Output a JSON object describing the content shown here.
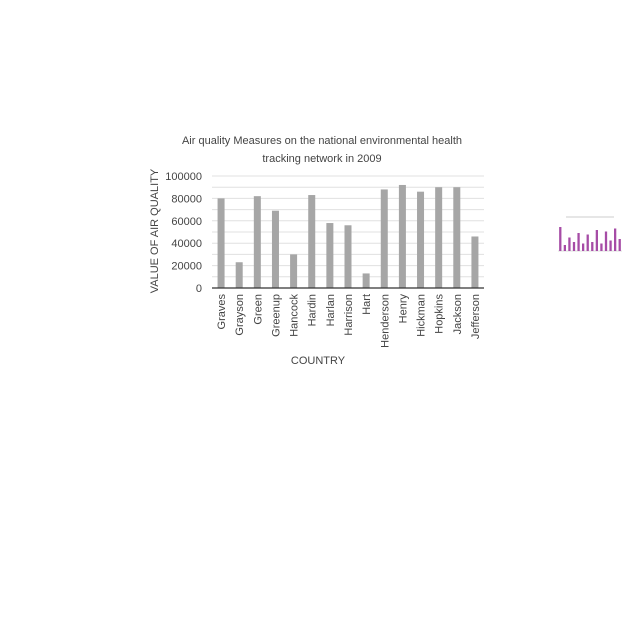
{
  "chart_data": {
    "type": "bar",
    "title_lines": [
      "Air quality Measures on the national environmental health",
      "tracking network in 2009"
    ],
    "xlabel": "COUNTRY",
    "ylabel": "VALUE OF  AIR QUALITY",
    "ylim": [
      0,
      100000
    ],
    "yticks": [
      "0",
      "20000",
      "40000",
      "60000",
      "80000",
      "100000"
    ],
    "grid": true,
    "bar_color": "#a6a6a6",
    "categories": [
      "Graves",
      "Grayson",
      "Green",
      "Greenup",
      "Hancock",
      "Hardin",
      "Harlan",
      "Harrison",
      "Hart",
      "Henderson",
      "Henry",
      "Hickman",
      "Hopkins",
      "Jackson",
      "Jefferson"
    ],
    "values": [
      80000,
      23000,
      82000,
      69000,
      30000,
      83000,
      58000,
      56000,
      13000,
      88000,
      92000,
      86000,
      90000,
      90000,
      46000
    ]
  },
  "thumbnail_chart": {
    "type": "bar",
    "bar_color": "#a64ca6",
    "values": [
      80,
      20,
      45,
      30,
      60,
      25,
      55,
      30,
      70,
      25,
      65,
      35,
      75,
      40
    ]
  }
}
